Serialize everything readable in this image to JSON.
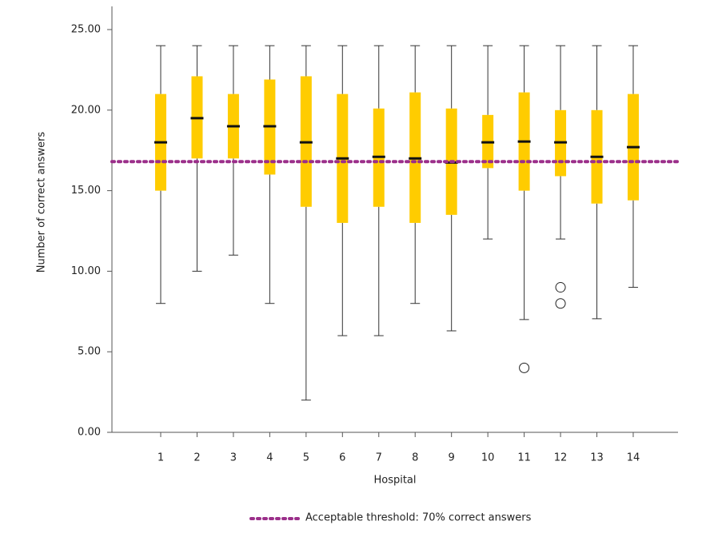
{
  "chart_data": {
    "type": "box",
    "x_label": "Hospital",
    "y_label": "Number of correct answers",
    "categories": [
      "1",
      "2",
      "3",
      "4",
      "5",
      "6",
      "7",
      "8",
      "9",
      "10",
      "11",
      "12",
      "13",
      "14"
    ],
    "whisker_high": [
      24,
      24,
      24,
      24,
      24,
      24,
      24,
      24,
      24,
      24,
      24,
      24,
      24,
      24
    ],
    "q3": [
      21,
      22.1,
      21,
      21.9,
      22.1,
      21,
      20.1,
      21.1,
      20.1,
      19.7,
      21.1,
      20,
      20,
      21
    ],
    "median": [
      18,
      19.5,
      19,
      19,
      18,
      17,
      17.1,
      17,
      16.75,
      18,
      18.05,
      18,
      17.1,
      17.7
    ],
    "q1": [
      15,
      17,
      17,
      16,
      14,
      13,
      14,
      13,
      13.5,
      16.4,
      15,
      15.9,
      14.2,
      14.4
    ],
    "whisker_low": [
      8,
      10,
      11,
      8,
      2,
      6,
      6,
      8,
      6.3,
      12,
      7,
      12,
      7.05,
      9
    ],
    "outliers": [
      [],
      [],
      [],
      [],
      [],
      [],
      [],
      [],
      [],
      [],
      [
        4
      ],
      [
        9,
        8
      ],
      [],
      []
    ],
    "color": "#ffcc00",
    "threshold": {
      "value": 16.8,
      "label": "Acceptable threshold: 70% correct answers",
      "color": "#9b2f8a"
    },
    "ylim": [
      0,
      25
    ],
    "yticks": [
      {
        "value": 0,
        "label": "0.00"
      },
      {
        "value": 5,
        "label": "5.00"
      },
      {
        "value": 10,
        "label": "10.00"
      },
      {
        "value": 15,
        "label": "15.00"
      },
      {
        "value": 20,
        "label": "20.00"
      },
      {
        "value": 25,
        "label": "25.00"
      }
    ]
  }
}
